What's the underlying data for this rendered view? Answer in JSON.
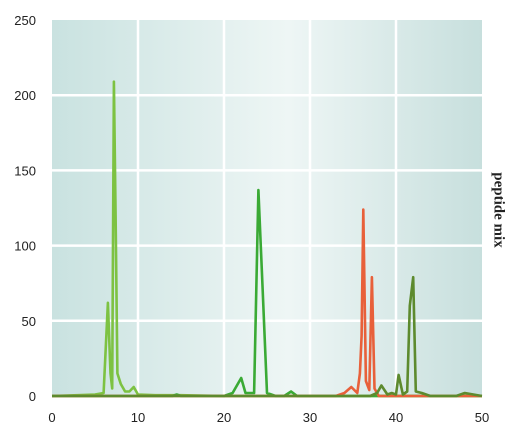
{
  "chart_data": {
    "type": "line",
    "title": "",
    "xlabel": "",
    "ylabel": "",
    "side_label": "peptide mix",
    "xlim": [
      0,
      50
    ],
    "ylim": [
      0,
      250
    ],
    "x_ticks": [
      0,
      10,
      20,
      30,
      40,
      50
    ],
    "y_ticks": [
      0,
      50,
      100,
      150,
      200,
      250
    ],
    "grid": "vertical and horizontal, white",
    "legend": "none",
    "background": "horizontal gradient teal-gray",
    "series": [
      {
        "color": "#7dc242",
        "x": [
          0,
          3,
          5,
          6,
          6.5,
          6.8,
          7.0,
          7.2,
          7.4,
          7.6,
          8,
          8.5,
          9,
          9.5,
          10,
          12,
          15,
          20,
          30,
          40,
          50
        ],
        "y": [
          0,
          0.5,
          1,
          2,
          62,
          15,
          5,
          209,
          120,
          15,
          8,
          3,
          3,
          6,
          1,
          0.5,
          0.5,
          0,
          0,
          0,
          0
        ]
      },
      {
        "color": "#3aaa35",
        "x": [
          0,
          10,
          14,
          14.5,
          15,
          20,
          21,
          22,
          22.5,
          23,
          23.5,
          24.0,
          24.5,
          25,
          26,
          27,
          27.8,
          28.5,
          30,
          40,
          50
        ],
        "y": [
          0,
          0,
          0,
          1,
          0,
          0,
          2,
          12,
          2,
          2,
          2,
          137,
          70,
          2,
          0,
          0,
          3,
          0,
          0,
          0,
          0
        ]
      },
      {
        "color": "#e8603a",
        "x": [
          0,
          10,
          20,
          30,
          33,
          34,
          34.8,
          35.5,
          35.8,
          36.0,
          36.2,
          36.5,
          36.9,
          37.2,
          37.5,
          38,
          40,
          50
        ],
        "y": [
          0,
          0,
          0,
          0,
          0,
          2,
          6,
          2,
          15,
          40,
          124,
          10,
          4,
          79,
          5,
          0,
          0,
          0
        ]
      },
      {
        "color": "#5d8a2e",
        "x": [
          0,
          10,
          20,
          30,
          37,
          37.8,
          38.3,
          39,
          39.5,
          40,
          40.3,
          40.8,
          41.3,
          41.6,
          42,
          42.3,
          43,
          44,
          45,
          47,
          48,
          50
        ],
        "y": [
          0,
          0,
          0,
          0,
          0,
          2,
          7,
          1,
          2,
          1,
          14,
          1,
          3,
          60,
          79,
          3,
          2,
          0,
          0,
          0,
          2,
          0
        ]
      }
    ]
  }
}
